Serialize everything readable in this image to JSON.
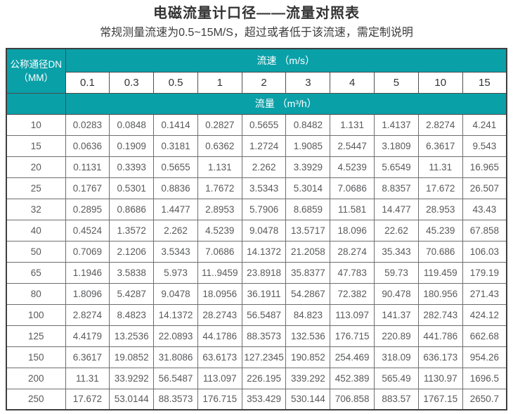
{
  "page": {
    "title": "电磁流量计口径——流量对照表",
    "subtitle": "常规测量流速为0.5~15M/S，超过或者低于该流速，需定制说明"
  },
  "colors": {
    "header_teal": "#0aa0a8",
    "header_text": "#ffffff",
    "data_text": "#58595b",
    "title_text": "#333333"
  },
  "table": {
    "corner_header_line1": "公称通径DN",
    "corner_header_line2": "（MM）",
    "velocity_header": "流速 （m/s）",
    "flow_header": "流量 （m³/h）",
    "velocity_columns": [
      "0.1",
      "0.3",
      "0.5",
      "1",
      "2",
      "3",
      "4",
      "5",
      "10",
      "15"
    ],
    "rows": [
      {
        "dn": "10",
        "values": [
          "0.0283",
          "0.0848",
          "0.1414",
          "0.2827",
          "0.5655",
          "0.8482",
          "1.131",
          "1.4137",
          "2.8274",
          "4.241"
        ]
      },
      {
        "dn": "15",
        "values": [
          "0.0636",
          "0.1909",
          "0.3181",
          "0.6362",
          "1.2724",
          "1.9085",
          "2.5447",
          "3.1809",
          "6.3617",
          "9.543"
        ]
      },
      {
        "dn": "20",
        "values": [
          "0.1131",
          "0.3393",
          "0.5655",
          "1.131",
          "2.262",
          "3.3929",
          "4.5239",
          "5.6549",
          "11.31",
          "16.965"
        ]
      },
      {
        "dn": "25",
        "values": [
          "0.1767",
          "0.5301",
          "0.8836",
          "1.7672",
          "3.5343",
          "5.3014",
          "7.0686",
          "8.8357",
          "17.672",
          "26.507"
        ]
      },
      {
        "dn": "32",
        "values": [
          "0.2895",
          "0.8686",
          "1.4477",
          "2.8953",
          "5.7906",
          "8.6859",
          "11.581",
          "14.477",
          "28.953",
          "43.43"
        ]
      },
      {
        "dn": "40",
        "values": [
          "0.4524",
          "1.3572",
          "2.262",
          "4.5239",
          "9.0478",
          "13.5717",
          "18.096",
          "22.62",
          "45.239",
          "67.858"
        ]
      },
      {
        "dn": "50",
        "values": [
          "0.7069",
          "2.1206",
          "3.5343",
          "7.0686",
          "14.1372",
          "21.2058",
          "28.274",
          "35.343",
          "70.686",
          "106.03"
        ]
      },
      {
        "dn": "65",
        "values": [
          "1.1946",
          "3.5838",
          "5.973",
          "11..9459",
          "23.8918",
          "35.8377",
          "47.783",
          "59.73",
          "119.459",
          "179.19"
        ]
      },
      {
        "dn": "80",
        "values": [
          "1.8096",
          "5.4287",
          "9.0478",
          "18.0956",
          "36.1911",
          "54.2867",
          "72.382",
          "90.478",
          "180.956",
          "271.43"
        ]
      },
      {
        "dn": "100",
        "values": [
          "2.8274",
          "8.4823",
          "14.1372",
          "28.2743",
          "56.5487",
          "84.823",
          "113.097",
          "141.37",
          "282.743",
          "424.12"
        ]
      },
      {
        "dn": "125",
        "values": [
          "4.4179",
          "13.2536",
          "22.0893",
          "44.1786",
          "88.3573",
          "132.536",
          "176.715",
          "220.89",
          "441.786",
          "662.68"
        ]
      },
      {
        "dn": "150",
        "values": [
          "6.3617",
          "19.0852",
          "31.8086",
          "63.6173",
          "127.2345",
          "190.852",
          "254.469",
          "318.09",
          "636.173",
          "954.26"
        ]
      },
      {
        "dn": "200",
        "values": [
          "11.31",
          "33.9292",
          "56.5487",
          "113.097",
          "226.195",
          "339.292",
          "452.389",
          "565.49",
          "1130.97",
          "1696.5"
        ]
      },
      {
        "dn": "250",
        "values": [
          "17.672",
          "53.0144",
          "88.3573",
          "176.715",
          "353.429",
          "530.144",
          "706.858",
          "883.57",
          "1767.15",
          "2650.7"
        ]
      }
    ]
  }
}
